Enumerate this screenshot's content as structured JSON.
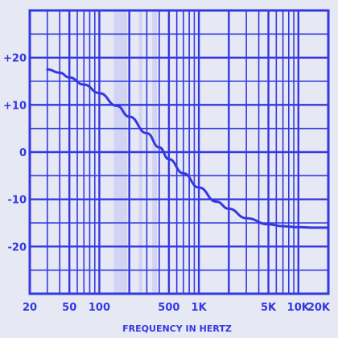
{
  "chart_data": {
    "type": "line",
    "title": "",
    "xlabel": "FREQUENCY IN HERTZ",
    "ylabel": "",
    "x_scale": "log",
    "xlim": [
      20,
      20000
    ],
    "ylim": [
      -30,
      30
    ],
    "grid": true,
    "x_ticks": [
      {
        "value": 20,
        "label": "20"
      },
      {
        "value": 50,
        "label": "50"
      },
      {
        "value": 100,
        "label": "100"
      },
      {
        "value": 500,
        "label": "500"
      },
      {
        "value": 1000,
        "label": "1K"
      },
      {
        "value": 5000,
        "label": "5K"
      },
      {
        "value": 10000,
        "label": "10K"
      },
      {
        "value": 20000,
        "label": "20K"
      }
    ],
    "y_ticks": [
      {
        "value": 20,
        "label": "+20"
      },
      {
        "value": 10,
        "label": "+10"
      },
      {
        "value": 0,
        "label": "0"
      },
      {
        "value": -10,
        "label": "-10"
      },
      {
        "value": -20,
        "label": "-20"
      }
    ],
    "series": [
      {
        "x": [
          30,
          40,
          50,
          70,
          100,
          150,
          200,
          300,
          400,
          500,
          700,
          1000,
          1500,
          2000,
          3000,
          5000,
          7000,
          10000,
          15000,
          20000
        ],
        "values": [
          17.5,
          16.8,
          15.8,
          14.3,
          12.5,
          9.8,
          7.5,
          4.0,
          1.0,
          -1.5,
          -4.5,
          -7.5,
          -10.5,
          -12.0,
          -14.0,
          -15.3,
          -15.7,
          -15.9,
          -16.0,
          -16.0
        ]
      }
    ],
    "colors": {
      "ink": "#3438e0",
      "paper": "#e6e8f4",
      "highlight": "#c7cdf2"
    }
  }
}
